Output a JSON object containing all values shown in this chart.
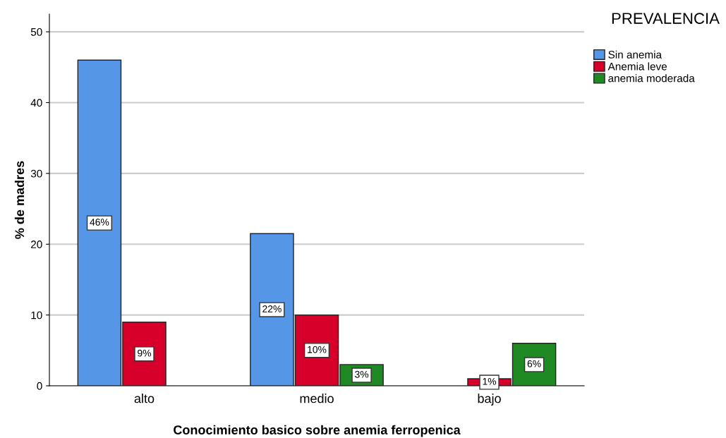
{
  "chart_data": {
    "type": "bar",
    "xlabel": "Conocimiento basico sobre anemia ferropenica",
    "ylabel": "% de madres",
    "legend_title": "PREVALENCIA",
    "categories": [
      "alto",
      "medio",
      "bajo"
    ],
    "series": [
      {
        "name": "Sin anemia",
        "color": "#5596e6",
        "values": [
          46,
          21.5,
          null
        ],
        "value_labels": [
          "46%",
          "22%",
          null
        ]
      },
      {
        "name": "Anemia leve",
        "color": "#d6002a",
        "values": [
          9,
          10,
          1
        ],
        "value_labels": [
          "9%",
          "10%",
          "1%"
        ]
      },
      {
        "name": "anemia moderada",
        "color": "#1f8a24",
        "values": [
          null,
          3,
          6
        ],
        "value_labels": [
          null,
          "3%",
          "6%"
        ]
      }
    ],
    "ylim": [
      0,
      52.5
    ],
    "yticks": [
      0,
      10,
      20,
      30,
      40,
      50
    ],
    "grid": "y",
    "legend": "top right"
  }
}
